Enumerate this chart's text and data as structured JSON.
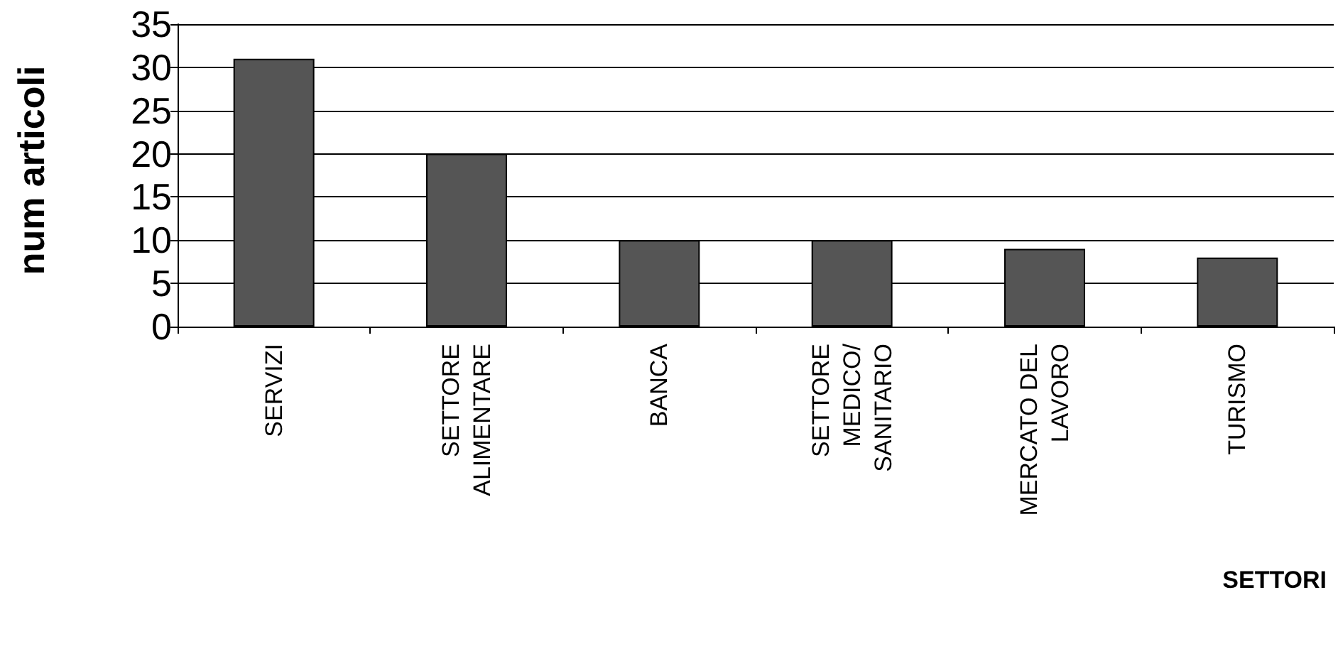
{
  "chart_data": {
    "type": "bar",
    "xlabel": "SETTORI",
    "ylabel": "num articoli",
    "categories": [
      "SERVIZI",
      "SETTORE\nALIMENTARE",
      "BANCA",
      "SETTORE\nMEDICO/\nSANITARIO",
      "MERCATO DEL\nLAVORO",
      "TURISMO"
    ],
    "values": [
      31,
      20,
      10,
      10,
      9,
      8
    ],
    "color": "#555555",
    "ylim": [
      0,
      35
    ],
    "yticks": [
      0,
      5,
      10,
      15,
      20,
      25,
      30,
      35
    ],
    "grid": "y"
  }
}
